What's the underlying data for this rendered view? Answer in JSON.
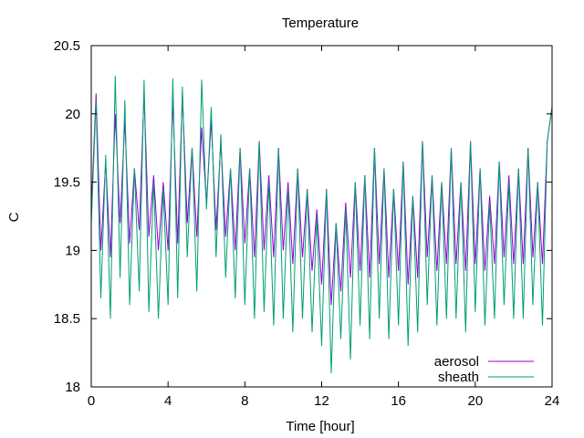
{
  "chart_data": {
    "type": "line",
    "title": "Temperature",
    "xlabel": "Time [hour]",
    "ylabel": "C",
    "xlim": [
      0,
      24
    ],
    "ylim": [
      18,
      20.5
    ],
    "xticks": [
      "0",
      "4",
      "8",
      "12",
      "16",
      "20",
      "24"
    ],
    "yticks": [
      "18",
      "18.5",
      "19",
      "19.5",
      "20",
      "20.5"
    ],
    "grid": false,
    "legend_position": "bottom-right",
    "series": [
      {
        "name": "aerosol",
        "color": "#9400d3",
        "x": [
          0.0,
          0.25,
          0.5,
          0.75,
          1.0,
          1.25,
          1.5,
          1.75,
          2.0,
          2.25,
          2.5,
          2.75,
          3.0,
          3.25,
          3.5,
          3.75,
          4.0,
          4.25,
          4.5,
          4.75,
          5.0,
          5.25,
          5.5,
          5.75,
          6.0,
          6.25,
          6.5,
          6.75,
          7.0,
          7.25,
          7.5,
          7.75,
          8.0,
          8.25,
          8.5,
          8.75,
          9.0,
          9.25,
          9.5,
          9.75,
          10.0,
          10.25,
          10.5,
          10.75,
          11.0,
          11.25,
          11.5,
          11.75,
          12.0,
          12.25,
          12.5,
          12.75,
          13.0,
          13.25,
          13.5,
          13.75,
          14.0,
          14.25,
          14.5,
          14.75,
          15.0,
          15.25,
          15.5,
          15.75,
          16.0,
          16.25,
          16.5,
          16.75,
          17.0,
          17.25,
          17.5,
          17.75,
          18.0,
          18.25,
          18.5,
          18.75,
          19.0,
          19.25,
          19.5,
          19.75,
          20.0,
          20.25,
          20.5,
          20.75,
          21.0,
          21.25,
          21.5,
          21.75,
          22.0,
          22.25,
          22.5,
          22.75,
          23.0,
          23.25,
          23.5,
          23.75,
          24.0
        ],
        "y": [
          19.3,
          20.15,
          19.0,
          19.65,
          18.95,
          20.0,
          19.2,
          19.95,
          19.05,
          19.6,
          19.15,
          20.15,
          19.1,
          19.55,
          19.0,
          19.5,
          19.0,
          20.1,
          19.05,
          20.15,
          19.2,
          19.75,
          19.1,
          19.9,
          19.35,
          19.95,
          19.15,
          19.8,
          19.1,
          19.6,
          19.0,
          19.75,
          19.05,
          19.6,
          18.95,
          19.8,
          19.0,
          19.55,
          18.95,
          19.75,
          19.0,
          19.5,
          18.9,
          19.6,
          18.95,
          19.45,
          18.85,
          19.3,
          18.75,
          19.45,
          18.6,
          19.2,
          18.7,
          19.35,
          18.8,
          19.5,
          18.85,
          19.55,
          18.8,
          19.75,
          18.9,
          19.6,
          18.8,
          19.45,
          18.85,
          19.65,
          18.75,
          19.4,
          18.8,
          19.8,
          18.95,
          19.55,
          18.85,
          19.5,
          18.9,
          19.75,
          18.9,
          19.5,
          18.85,
          19.8,
          18.9,
          19.6,
          18.85,
          19.4,
          18.9,
          19.65,
          18.95,
          19.55,
          18.9,
          19.6,
          18.9,
          19.75,
          18.95,
          19.5,
          18.9,
          19.8,
          20.05
        ]
      },
      {
        "name": "sheath",
        "color": "#009e73",
        "x": [
          0.0,
          0.25,
          0.5,
          0.75,
          1.0,
          1.25,
          1.5,
          1.75,
          2.0,
          2.25,
          2.5,
          2.75,
          3.0,
          3.25,
          3.5,
          3.75,
          4.0,
          4.25,
          4.5,
          4.75,
          5.0,
          5.25,
          5.5,
          5.75,
          6.0,
          6.25,
          6.5,
          6.75,
          7.0,
          7.25,
          7.5,
          7.75,
          8.0,
          8.25,
          8.5,
          8.75,
          9.0,
          9.25,
          9.5,
          9.75,
          10.0,
          10.25,
          10.5,
          10.75,
          11.0,
          11.25,
          11.5,
          11.75,
          12.0,
          12.25,
          12.5,
          12.75,
          13.0,
          13.25,
          13.5,
          13.75,
          14.0,
          14.25,
          14.5,
          14.75,
          15.0,
          15.25,
          15.5,
          15.75,
          16.0,
          16.25,
          16.5,
          16.75,
          17.0,
          17.25,
          17.5,
          17.75,
          18.0,
          18.25,
          18.5,
          18.75,
          19.0,
          19.25,
          19.5,
          19.75,
          20.0,
          20.25,
          20.5,
          20.75,
          21.0,
          21.25,
          21.5,
          21.75,
          22.0,
          22.25,
          22.5,
          22.75,
          23.0,
          23.25,
          23.5,
          23.75,
          24.0
        ],
        "y": [
          19.2,
          20.1,
          18.65,
          19.7,
          18.5,
          20.28,
          18.8,
          20.1,
          18.6,
          19.6,
          18.7,
          20.25,
          18.55,
          19.5,
          18.5,
          19.45,
          18.6,
          20.26,
          18.65,
          20.2,
          18.95,
          19.75,
          18.7,
          20.25,
          19.3,
          20.05,
          18.95,
          19.85,
          18.8,
          19.6,
          18.65,
          19.75,
          18.6,
          19.6,
          18.5,
          19.8,
          18.55,
          19.5,
          18.45,
          19.75,
          18.5,
          19.45,
          18.4,
          19.6,
          18.5,
          19.45,
          18.4,
          19.25,
          18.3,
          19.45,
          18.1,
          19.2,
          18.35,
          19.3,
          18.2,
          19.5,
          18.45,
          19.55,
          18.35,
          19.75,
          18.5,
          19.6,
          18.35,
          19.45,
          18.45,
          19.65,
          18.3,
          19.4,
          18.4,
          19.8,
          18.6,
          19.55,
          18.45,
          19.5,
          18.5,
          19.75,
          18.5,
          19.5,
          18.4,
          19.8,
          18.55,
          19.6,
          18.45,
          19.35,
          18.5,
          19.65,
          18.6,
          19.5,
          18.5,
          19.6,
          18.5,
          19.75,
          18.6,
          19.5,
          18.45,
          19.8,
          20.05
        ]
      }
    ]
  }
}
